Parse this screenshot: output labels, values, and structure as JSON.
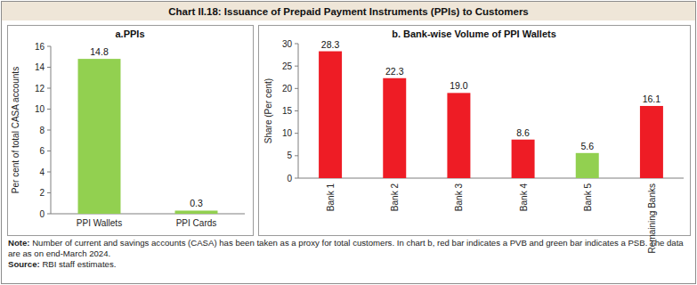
{
  "title": "Chart II.18: Issuance of Prepaid Payment Instruments (PPIs) to Customers",
  "chart_data": [
    {
      "type": "bar",
      "title": "a.PPIs",
      "y_label": "Per cent of total CASA accounts",
      "categories": [
        "PPI Wallets",
        "PPI Cards"
      ],
      "values": [
        14.8,
        0.3
      ],
      "color": "#92d050",
      "ylim": [
        0,
        16
      ],
      "yticks": [
        0,
        2,
        4,
        6,
        8,
        10,
        12,
        14,
        16
      ],
      "grid": false,
      "data_labels": true
    },
    {
      "type": "bar",
      "title": "b. Bank-wise Volume of PPI Wallets",
      "y_label": "Share (Per cent)",
      "categories": [
        "Bank 1",
        "Bank 2",
        "Bank 3",
        "Bank 4",
        "Bank 5",
        "Remaining Banks"
      ],
      "values": [
        28.3,
        22.3,
        19.0,
        8.6,
        5.6,
        16.1
      ],
      "value_labels": [
        "28.3",
        "22.3",
        "19.0",
        "8.6",
        "5.6",
        "16.1"
      ],
      "colors": [
        "#ee1c25",
        "#ee1c25",
        "#ee1c25",
        "#ee1c25",
        "#92d050",
        "#ee1c25"
      ],
      "ylim": [
        0,
        30
      ],
      "yticks": [
        0,
        5,
        10,
        15,
        20,
        25,
        30
      ],
      "grid": false,
      "data_labels": true
    }
  ],
  "note": {
    "label": "Note:",
    "text": "Number of current and savings accounts (CASA) has been taken as a proxy for total customers. In chart b, red bar indicates a PVB and green bar indicates a PSB. The data are as on end-March 2024."
  },
  "source": {
    "label": "Source:",
    "text": "RBI staff estimates."
  }
}
